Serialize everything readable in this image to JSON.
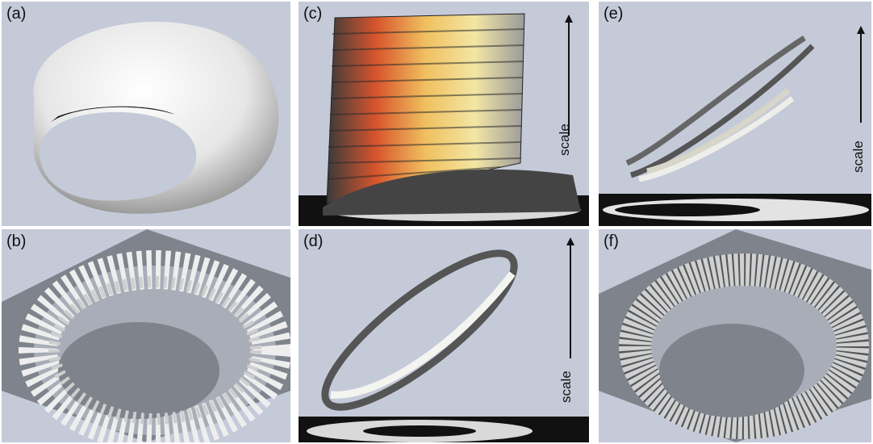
{
  "figure": {
    "panels": [
      {
        "id": "a",
        "label": "(a)"
      },
      {
        "id": "b",
        "label": "(b)"
      },
      {
        "id": "c",
        "label": "(c)",
        "scale_label": "scale"
      },
      {
        "id": "d",
        "label": "(d)",
        "scale_label": "scale"
      },
      {
        "id": "e",
        "label": "(e)",
        "scale_label": "scale"
      },
      {
        "id": "f",
        "label": "(f)"
      }
    ]
  },
  "colors": {
    "background": "#c5cad9",
    "floor_dark": "#7f838c",
    "surface_light": "#f3f3f3",
    "surface_shadow": "#1a1a1a",
    "warm_particles": [
      "#d8552c",
      "#e88a3a",
      "#f0c060",
      "#f3e6a4"
    ]
  }
}
